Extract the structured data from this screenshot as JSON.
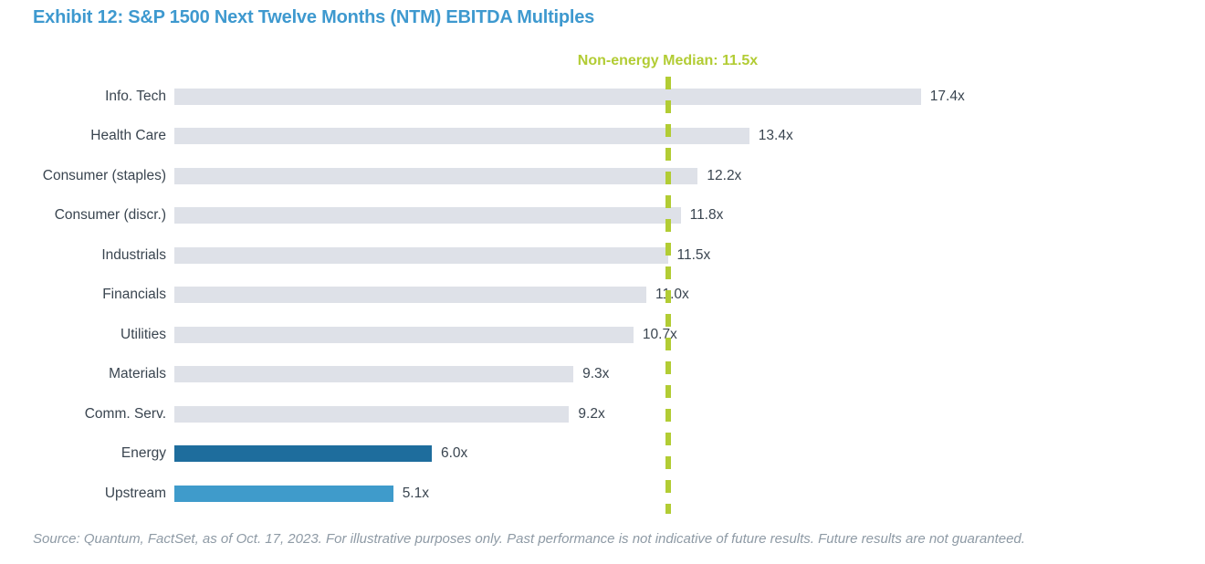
{
  "title": "Exhibit 12: S&P 1500 Next Twelve Months (NTM) EBITDA Multiples",
  "source": "Source: Quantum, FactSet, as of Oct. 17, 2023. For illustrative purposes only. Past performance is not indicative of future results. Future results are not guaranteed.",
  "colors": {
    "title_blue": "#3e99cf",
    "bar_gray": "#dee1e8",
    "energy_blue": "#1e6d9d",
    "upstream_blue": "#3f9bcb",
    "median_green": "#b2cc34",
    "label_dark": "#3a4550",
    "source_gray": "#8e9aa5"
  },
  "chart_data": {
    "type": "bar",
    "orientation": "horizontal",
    "title": "Exhibit 12: S&P 1500 Next Twelve Months (NTM) EBITDA Multiples",
    "median_label": "Non-energy Median: 11.5x",
    "median_value": 11.5,
    "value_suffix": "x",
    "categories": [
      "Info. Tech",
      "Health Care",
      "Consumer (staples)",
      "Consumer (discr.)",
      "Industrials",
      "Financials",
      "Utilities",
      "Materials",
      "Comm. Serv.",
      "Energy",
      "Upstream"
    ],
    "values": [
      17.4,
      13.4,
      12.2,
      11.8,
      11.5,
      11.0,
      10.7,
      9.3,
      9.2,
      6.0,
      5.1
    ],
    "value_labels": [
      "17.4x",
      "13.4x",
      "12.2x",
      "11.8x",
      "11.5x",
      "11.0x",
      "10.7x",
      "9.3x",
      "9.2x",
      "6.0x",
      "5.1x"
    ],
    "bar_colors": [
      "#dee1e8",
      "#dee1e8",
      "#dee1e8",
      "#dee1e8",
      "#dee1e8",
      "#dee1e8",
      "#dee1e8",
      "#dee1e8",
      "#dee1e8",
      "#1e6d9d",
      "#3f9bcb"
    ],
    "xlim": [
      0,
      18.5
    ],
    "grid": false,
    "legend": false,
    "annotation": "Non-energy Median: 11.5x shown as vertical dashed line"
  }
}
